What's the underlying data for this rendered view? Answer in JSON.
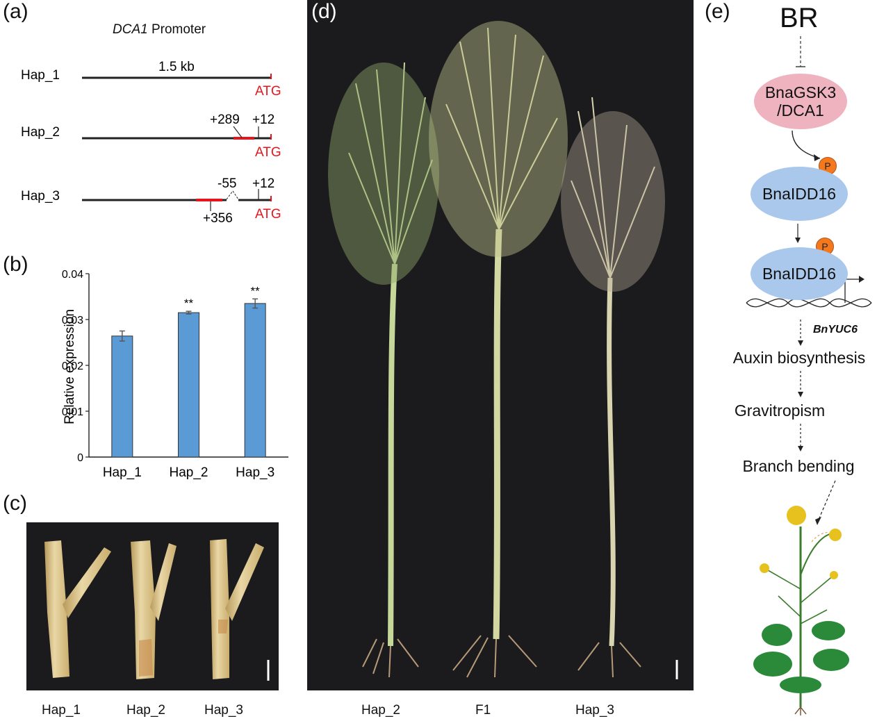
{
  "panels": {
    "a": {
      "letter": "(a)",
      "title_gene": "DCA1",
      "title_rest": " Promoter",
      "length_label": "1.5 kb",
      "haplotypes": [
        {
          "name": "Hap_1",
          "atg": "ATG"
        },
        {
          "name": "Hap_2",
          "atg": "ATG",
          "labels": [
            "+289",
            "+12"
          ]
        },
        {
          "name": "Hap_3",
          "atg": "ATG",
          "labels": [
            "-55",
            "+12",
            "+356"
          ]
        }
      ]
    },
    "b": {
      "letter": "(b)"
    },
    "c": {
      "letter": "(c)",
      "labels": [
        "Hap_1",
        "Hap_2",
        "Hap_3"
      ]
    },
    "d": {
      "letter": "(d)",
      "labels": [
        "Hap_2",
        "F1",
        "Hap_3"
      ]
    },
    "e": {
      "letter": "(e)",
      "br": "BR",
      "kinase": "BnaGSK3\n/DCA1",
      "tf1": "BnaIDD16",
      "tf2": "BnaIDD16",
      "phospho": "P",
      "gene": "BnYUC6",
      "steps": [
        "Auxin biosynthesis",
        "Gravitropism",
        "Branch bending"
      ]
    }
  },
  "chart_data": {
    "type": "bar",
    "categories": [
      "Hap_1",
      "Hap_2",
      "Hap_3"
    ],
    "values": [
      0.0264,
      0.0315,
      0.0335
    ],
    "errors": [
      0.0011,
      0.0003,
      0.001
    ],
    "significance": [
      "",
      "**",
      "**"
    ],
    "ylabel": "Relative expression",
    "ylim": [
      0,
      0.04
    ],
    "yticks": [
      "0",
      "0.01",
      "0.02",
      "0.03",
      "0.04"
    ],
    "bar_color": "#5b9bd5",
    "grid": false
  },
  "colors": {
    "red_segment": "#e8141b",
    "kinase_fill": "#eeb3bf",
    "tf_fill": "#a9c8ec",
    "phospho_fill": "#f4781c"
  }
}
